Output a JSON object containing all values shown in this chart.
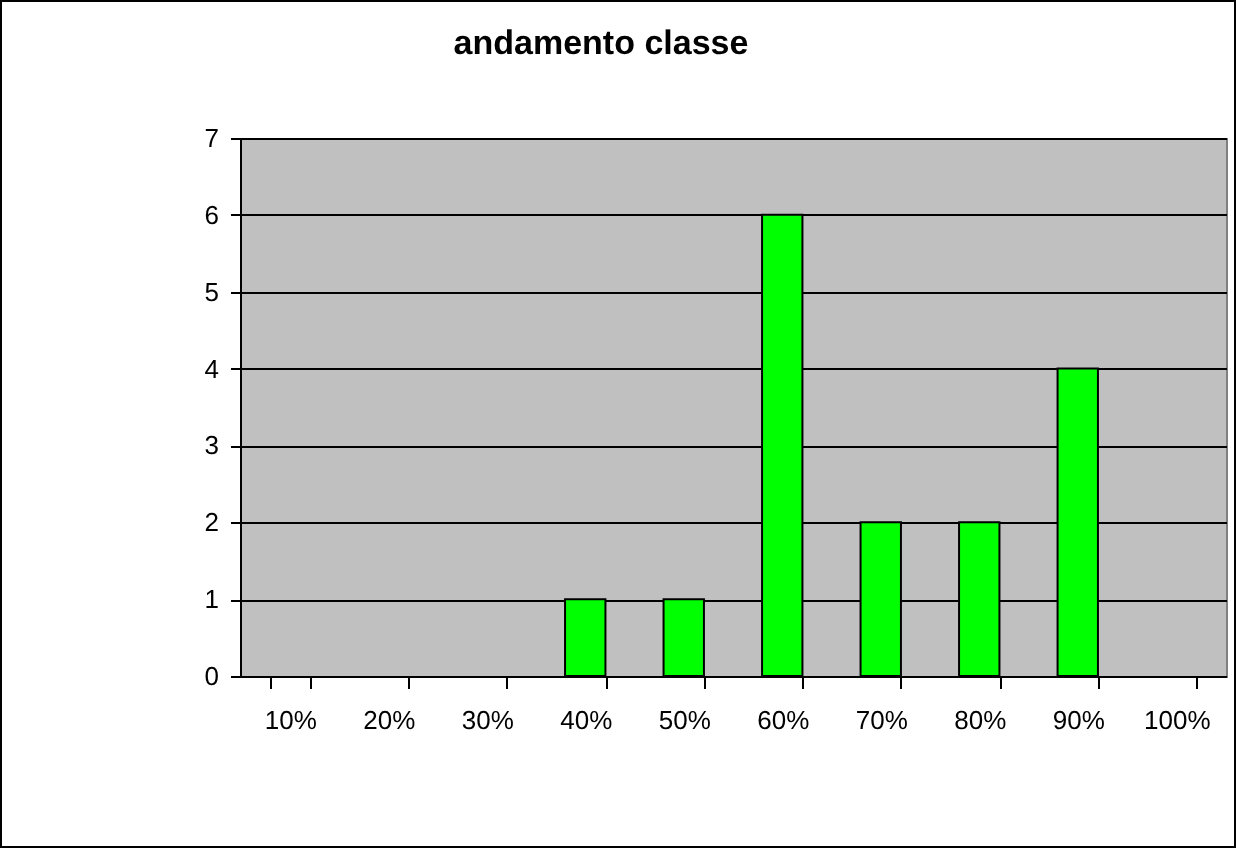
{
  "chart_data": {
    "type": "bar",
    "title": "andamento classe",
    "categories": [
      "10%",
      "20%",
      "30%",
      "40%",
      "50%",
      "60%",
      "70%",
      "80%",
      "90%",
      "100%"
    ],
    "values": [
      0,
      0,
      0,
      1,
      1,
      6,
      2,
      2,
      4,
      0
    ],
    "color": "#00ff00",
    "ylim": [
      0,
      7
    ],
    "yticks": [
      0,
      1,
      2,
      3,
      4,
      5,
      6,
      7
    ],
    "grid": "y"
  }
}
